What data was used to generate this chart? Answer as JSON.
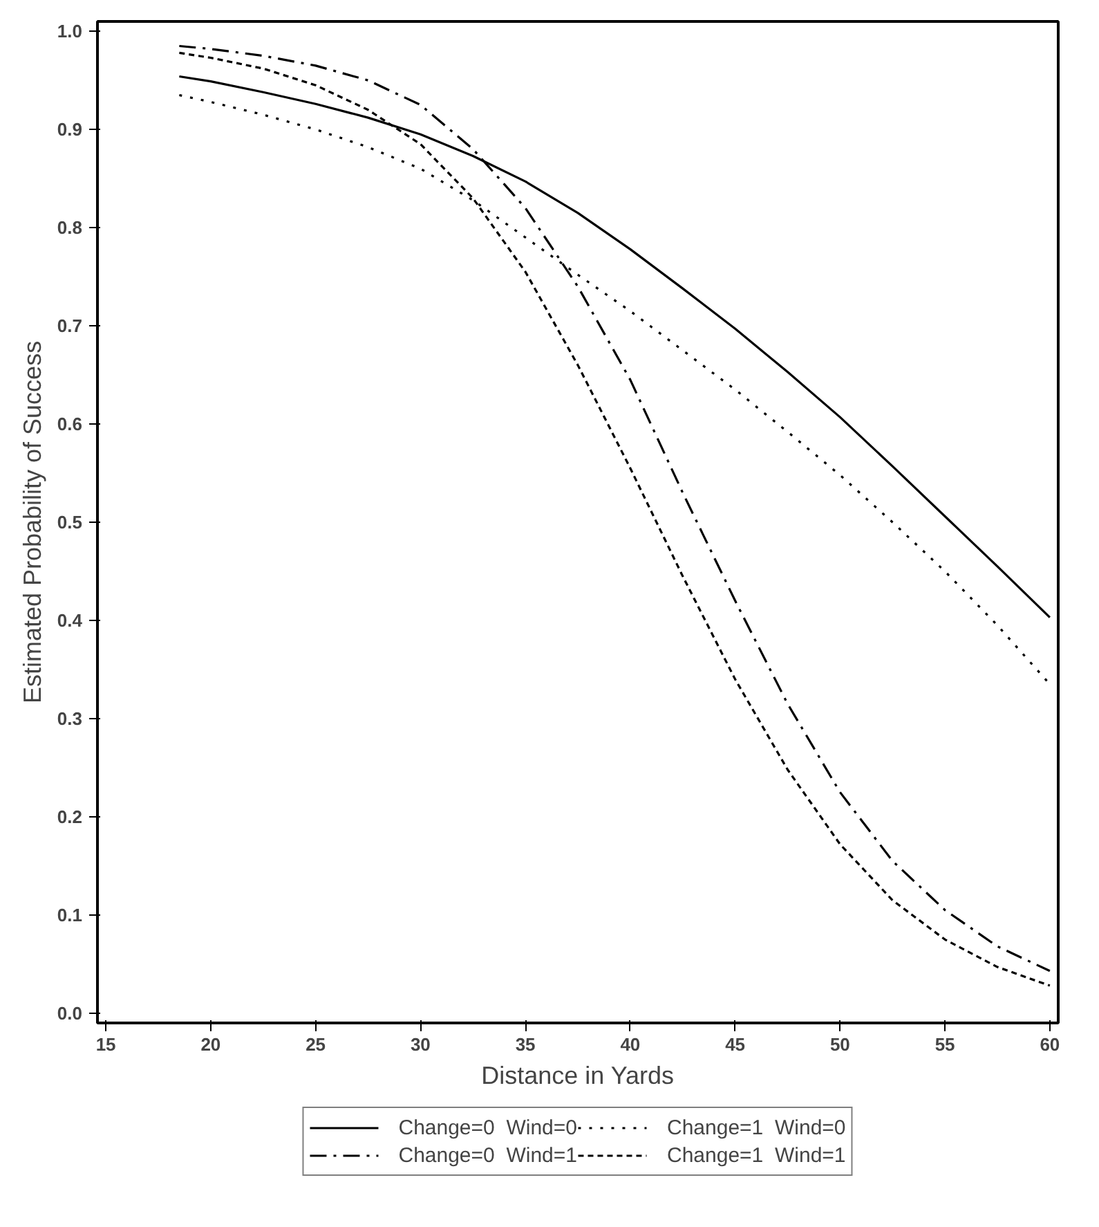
{
  "chart_data": {
    "type": "line",
    "xlabel": "Distance in Yards",
    "ylabel": "Estimated Probability of Success",
    "xlim": [
      14.6,
      60.4
    ],
    "ylim": [
      -0.01,
      1.01
    ],
    "xticks": [
      15,
      20,
      25,
      30,
      35,
      40,
      45,
      50,
      55,
      60
    ],
    "yticks": [
      {
        "value": 0,
        "label": "0.0"
      },
      0.1,
      0.2,
      0.3,
      0.4,
      0.5,
      0.6,
      0.7,
      0.8,
      0.9,
      {
        "value": 1,
        "label": "1.0"
      }
    ],
    "grid": false,
    "legend": "bottom",
    "marker": "none",
    "x": [
      18.5,
      20,
      22.5,
      25,
      27.5,
      30,
      32.5,
      35,
      37.5,
      40,
      42.5,
      45,
      47.5,
      50,
      52.5,
      55,
      57.5,
      60
    ],
    "series": [
      {
        "name": "Change=0  Wind=0",
        "color": "#000000",
        "line_style": "solid",
        "values": [
          0.954,
          0.949,
          0.938,
          0.926,
          0.912,
          0.895,
          0.873,
          0.847,
          0.815,
          0.778,
          0.738,
          0.697,
          0.653,
          0.607,
          0.557,
          0.506,
          0.455,
          0.403
        ]
      },
      {
        "name": "Change=0  Wind=1",
        "color": "#000000",
        "line_style": "dashdot",
        "values": [
          0.985,
          0.982,
          0.975,
          0.965,
          0.95,
          0.925,
          0.88,
          0.82,
          0.74,
          0.645,
          0.53,
          0.42,
          0.315,
          0.225,
          0.155,
          0.105,
          0.068,
          0.043
        ]
      },
      {
        "name": "Change=1  Wind=0",
        "color": "#000000",
        "line_style": "dotted",
        "values": [
          0.935,
          0.928,
          0.915,
          0.9,
          0.882,
          0.86,
          0.828,
          0.79,
          0.752,
          0.715,
          0.675,
          0.635,
          0.592,
          0.548,
          0.5,
          0.45,
          0.395,
          0.335
        ]
      },
      {
        "name": "Change=1  Wind=1",
        "color": "#000000",
        "line_style": "dashed",
        "values": [
          0.978,
          0.973,
          0.962,
          0.945,
          0.92,
          0.885,
          0.83,
          0.755,
          0.66,
          0.555,
          0.445,
          0.34,
          0.248,
          0.172,
          0.115,
          0.075,
          0.047,
          0.028
        ]
      }
    ]
  }
}
